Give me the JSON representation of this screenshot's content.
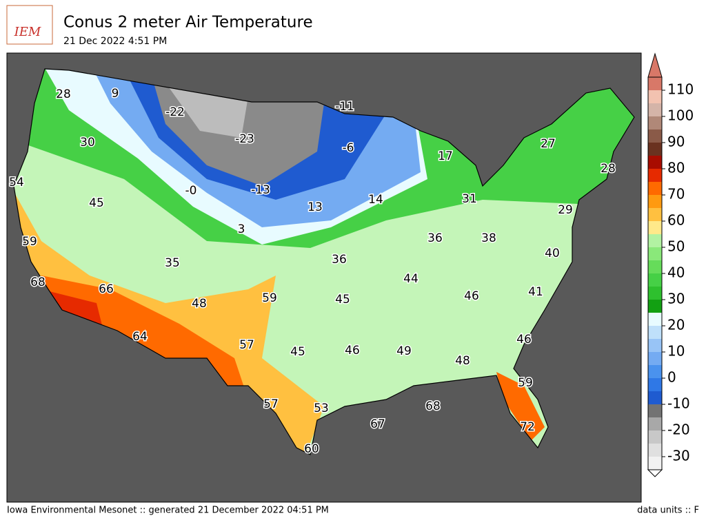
{
  "header": {
    "logo": "IEM",
    "title": "Conus 2 meter Air Temperature",
    "subtitle": "21 Dec 2022 4:51 PM"
  },
  "map": {
    "labels": [
      28,
      9,
      "-22",
      -11,
      -23,
      -6,
      30,
      17,
      27,
      28,
      54,
      "-0",
      -13,
      45,
      13,
      14,
      31,
      29,
      3,
      59,
      36,
      38,
      36,
      40,
      35,
      44,
      68,
      66,
      59,
      45,
      46,
      41,
      48,
      46,
      64,
      57,
      45,
      46,
      49,
      48,
      59,
      57,
      53,
      68,
      67,
      72,
      60
    ]
  },
  "colorbar": {
    "lim": [
      -35,
      115
    ],
    "ticks": [
      -30,
      -20,
      -10,
      0,
      10,
      20,
      30,
      40,
      50,
      60,
      70,
      80,
      90,
      100,
      110
    ],
    "colors": [
      "#f2f2f2",
      "#e0e0e0",
      "#c8c8c8",
      "#a8a8a8",
      "#737373",
      "#1f5bd0",
      "#2f78e6",
      "#4a92ee",
      "#74abf2",
      "#98c4f6",
      "#bfe0fa",
      "#e8fbff",
      "#12a012",
      "#2ec02e",
      "#46d046",
      "#66dc5a",
      "#8ae87a",
      "#b2f2a2",
      "#ffe98a",
      "#ffc040",
      "#ff9a10",
      "#ff6a00",
      "#e62a00",
      "#a80c00",
      "#6a3220",
      "#8a5a48",
      "#b08878",
      "#d4b4a8",
      "#f2c2b0",
      "#d87868"
    ]
  },
  "footer": {
    "left": "Iowa Environmental Mesonet :: generated 21 December 2022 04:51 PM",
    "right": "data units :: F"
  }
}
